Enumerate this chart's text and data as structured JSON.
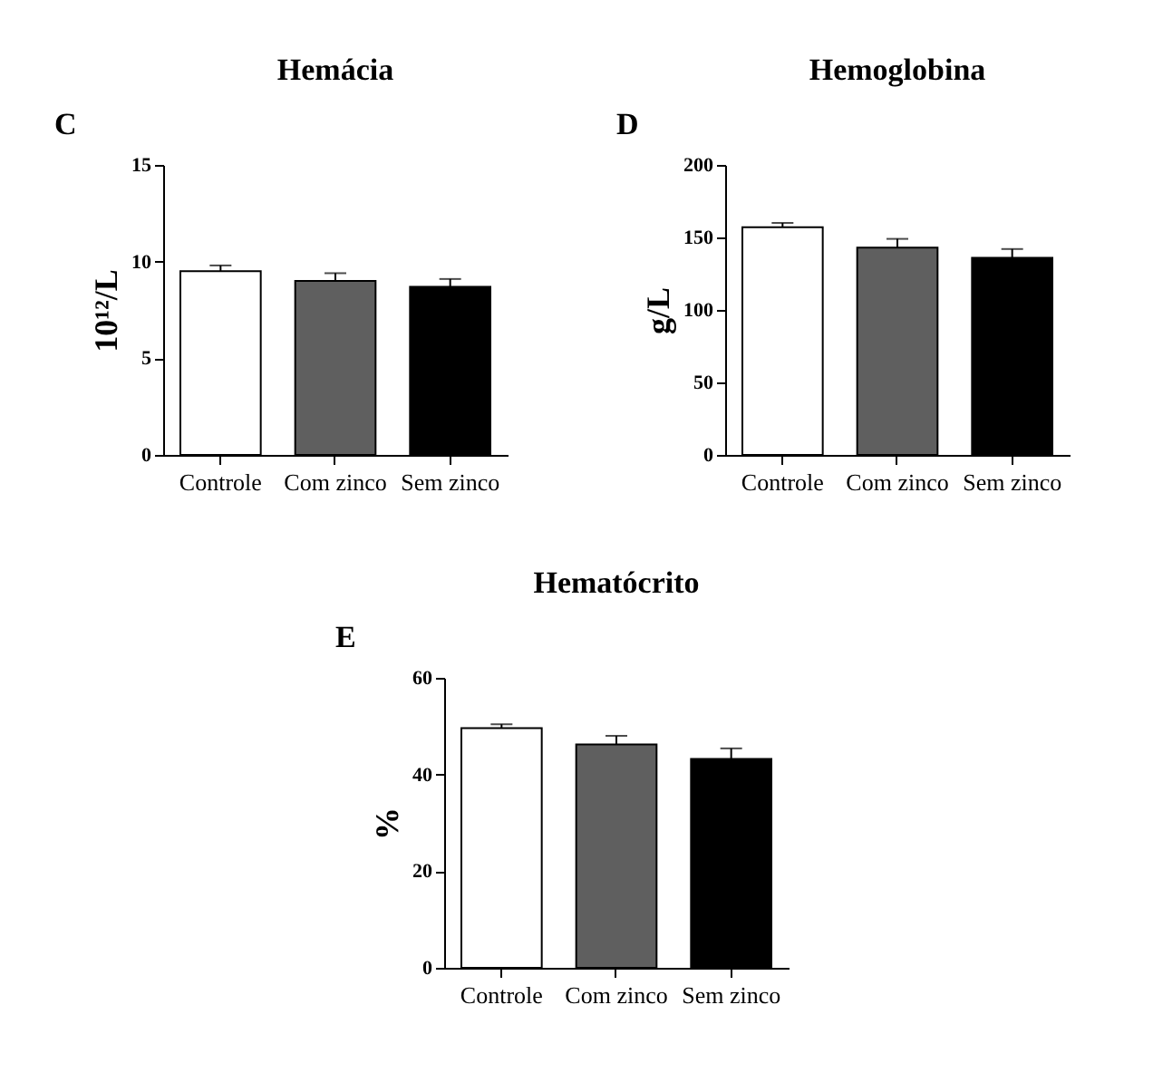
{
  "chart_data": [
    {
      "type": "bar",
      "title": "Hemácia",
      "ylabel": "10¹²/L",
      "annotations": [
        "C"
      ],
      "categories": [
        "Controle",
        "Com zinco",
        "Sem zinco"
      ],
      "values": [
        9.5,
        9.0,
        8.7
      ],
      "errors": [
        [
          9.5,
          9.8
        ],
        [
          9.0,
          9.4
        ],
        [
          8.7,
          9.1
        ]
      ],
      "colors": [
        "#ffffff",
        "#5f5f5f",
        "#000000"
      ],
      "ylim": [
        0,
        15
      ],
      "yticks": [
        0,
        5,
        10,
        15
      ],
      "grid": false
    },
    {
      "type": "bar",
      "title": "Hemoglobina",
      "ylabel": "g/L",
      "annotations": [
        "D"
      ],
      "categories": [
        "Controle",
        "Com zinco",
        "Sem zinco"
      ],
      "values": [
        157,
        143,
        136
      ],
      "errors": [
        [
          157,
          160
        ],
        [
          143,
          149
        ],
        [
          136,
          142
        ]
      ],
      "colors": [
        "#ffffff",
        "#5f5f5f",
        "#000000"
      ],
      "ylim": [
        0,
        200
      ],
      "yticks": [
        0,
        50,
        100,
        150,
        200
      ],
      "grid": false
    },
    {
      "type": "bar",
      "title": "Hematócrito",
      "ylabel": "%",
      "annotations": [
        "E"
      ],
      "categories": [
        "Controle",
        "Com zinco",
        "Sem zinco"
      ],
      "values": [
        49.6,
        46.2,
        43.2
      ],
      "errors": [
        [
          49.6,
          50.4
        ],
        [
          46.2,
          48.0
        ],
        [
          43.2,
          45.4
        ]
      ],
      "colors": [
        "#ffffff",
        "#5f5f5f",
        "#000000"
      ],
      "ylim": [
        0,
        60
      ],
      "yticks": [
        0,
        20,
        40,
        60
      ],
      "grid": false
    }
  ]
}
